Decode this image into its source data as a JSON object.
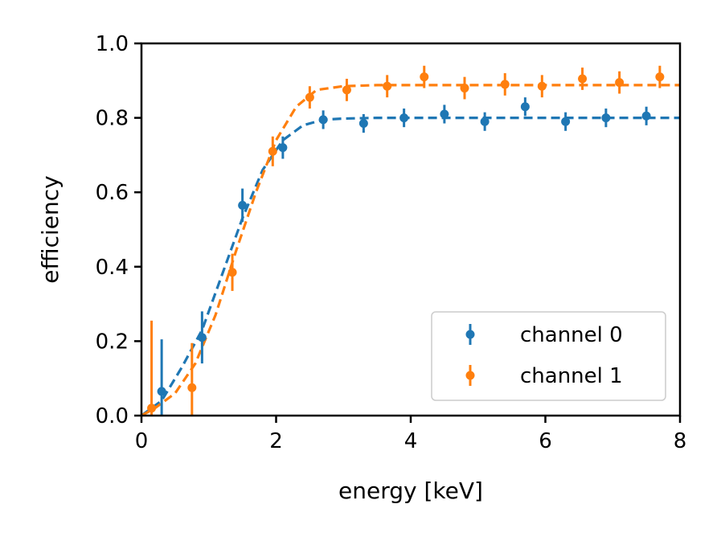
{
  "chart_data": {
    "type": "scatter",
    "title": "",
    "xlabel": "energy [keV]",
    "ylabel": "efficiency",
    "xlim": [
      0,
      8
    ],
    "ylim": [
      0,
      1.0
    ],
    "xticks": [
      0,
      2,
      4,
      6,
      8
    ],
    "yticks": [
      0.0,
      0.2,
      0.4,
      0.6,
      0.8,
      1.0
    ],
    "xtick_labels": [
      "0",
      "2",
      "4",
      "6",
      "8"
    ],
    "ytick_labels": [
      "0.0",
      "0.2",
      "0.4",
      "0.6",
      "0.8",
      "1.0"
    ],
    "legend_position": "bottom-right",
    "series": [
      {
        "name": "channel 0",
        "color": "#1f77b4",
        "x": [
          0.3,
          0.9,
          1.5,
          2.1,
          2.7,
          3.3,
          3.9,
          4.5,
          5.1,
          5.7,
          6.3,
          6.9,
          7.5
        ],
        "y": [
          0.065,
          0.21,
          0.565,
          0.72,
          0.795,
          0.785,
          0.8,
          0.81,
          0.79,
          0.83,
          0.79,
          0.8,
          0.805
        ],
        "yerr": [
          0.14,
          0.07,
          0.045,
          0.03,
          0.025,
          0.025,
          0.025,
          0.025,
          0.025,
          0.025,
          0.025,
          0.025,
          0.025
        ],
        "fit_x": [
          0.0,
          0.3,
          0.6,
          0.9,
          1.2,
          1.5,
          1.8,
          2.1,
          2.4,
          2.7,
          3.0,
          3.5,
          4.0,
          5.0,
          6.0,
          7.0,
          8.0
        ],
        "fit_y": [
          0.0,
          0.04,
          0.13,
          0.23,
          0.38,
          0.53,
          0.66,
          0.74,
          0.78,
          0.795,
          0.798,
          0.8,
          0.8,
          0.8,
          0.8,
          0.8,
          0.8
        ]
      },
      {
        "name": "channel 1",
        "color": "#ff7f0e",
        "x": [
          0.15,
          0.75,
          1.35,
          1.95,
          2.5,
          3.05,
          3.65,
          4.2,
          4.8,
          5.4,
          5.95,
          6.55,
          7.1,
          7.7
        ],
        "y": [
          0.02,
          0.075,
          0.385,
          0.71,
          0.855,
          0.875,
          0.885,
          0.91,
          0.88,
          0.89,
          0.885,
          0.905,
          0.895,
          0.91
        ],
        "yerr": [
          0.235,
          0.12,
          0.05,
          0.04,
          0.03,
          0.03,
          0.03,
          0.03,
          0.03,
          0.03,
          0.03,
          0.03,
          0.03,
          0.03
        ],
        "fit_x": [
          0.0,
          0.2,
          0.5,
          0.8,
          1.1,
          1.4,
          1.7,
          2.0,
          2.3,
          2.6,
          3.0,
          3.5,
          4.0,
          5.0,
          6.0,
          7.0,
          8.0
        ],
        "fit_y": [
          0.0,
          0.02,
          0.06,
          0.14,
          0.27,
          0.44,
          0.6,
          0.74,
          0.83,
          0.875,
          0.885,
          0.888,
          0.888,
          0.888,
          0.888,
          0.888,
          0.888
        ]
      }
    ]
  }
}
